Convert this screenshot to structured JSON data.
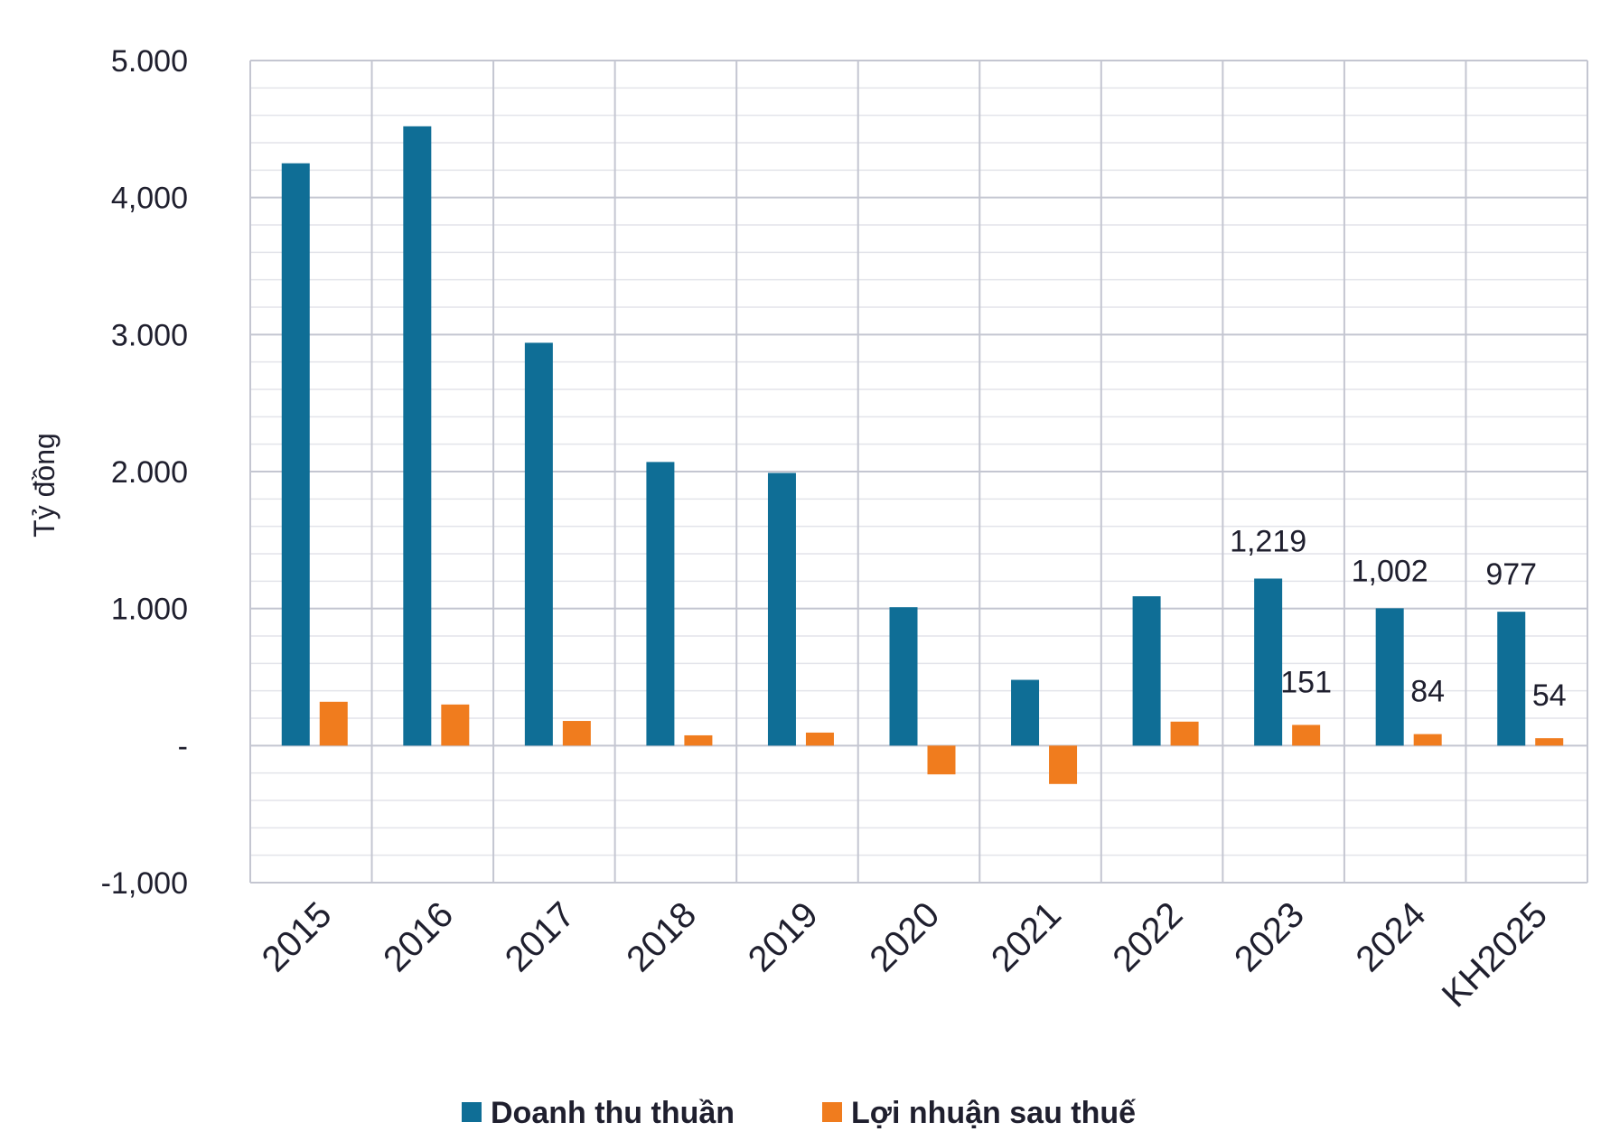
{
  "chart_data": {
    "type": "bar",
    "categories": [
      "2015",
      "2016",
      "2017",
      "2018",
      "2019",
      "2020",
      "2021",
      "2022",
      "2023",
      "2024",
      "KH2025"
    ],
    "series": [
      {
        "name": "Doanh thu thuần",
        "color": "#0f6e96",
        "values": [
          4250,
          4520,
          2940,
          2070,
          1990,
          1010,
          480,
          1090,
          1219,
          1002,
          977
        ],
        "labels": [
          "",
          "",
          "",
          "",
          "",
          "",
          "",
          "",
          "1,219",
          "1,002",
          "977"
        ]
      },
      {
        "name": "Lợi nhuận sau thuế",
        "color": "#f07c1e",
        "values": [
          320,
          300,
          180,
          75,
          95,
          -210,
          -280,
          175,
          151,
          84,
          54
        ],
        "labels": [
          "",
          "",
          "",
          "",
          "",
          "",
          "",
          "",
          "151",
          "84",
          "54"
        ]
      }
    ],
    "ylabel": "Tỷ đồng",
    "xlabel": "",
    "ylim": [
      -1000,
      5000
    ],
    "yticks": [
      {
        "value": 5000,
        "label": "5.000"
      },
      {
        "value": 4000,
        "label": "4,000"
      },
      {
        "value": 3000,
        "label": "3.000"
      },
      {
        "value": 2000,
        "label": "2.000"
      },
      {
        "value": 1000,
        "label": "1.000"
      },
      {
        "value": 0,
        "label": "-"
      },
      {
        "value": -1000,
        "label": "-1,000"
      }
    ],
    "grid": true,
    "legend_position": "bottom"
  }
}
